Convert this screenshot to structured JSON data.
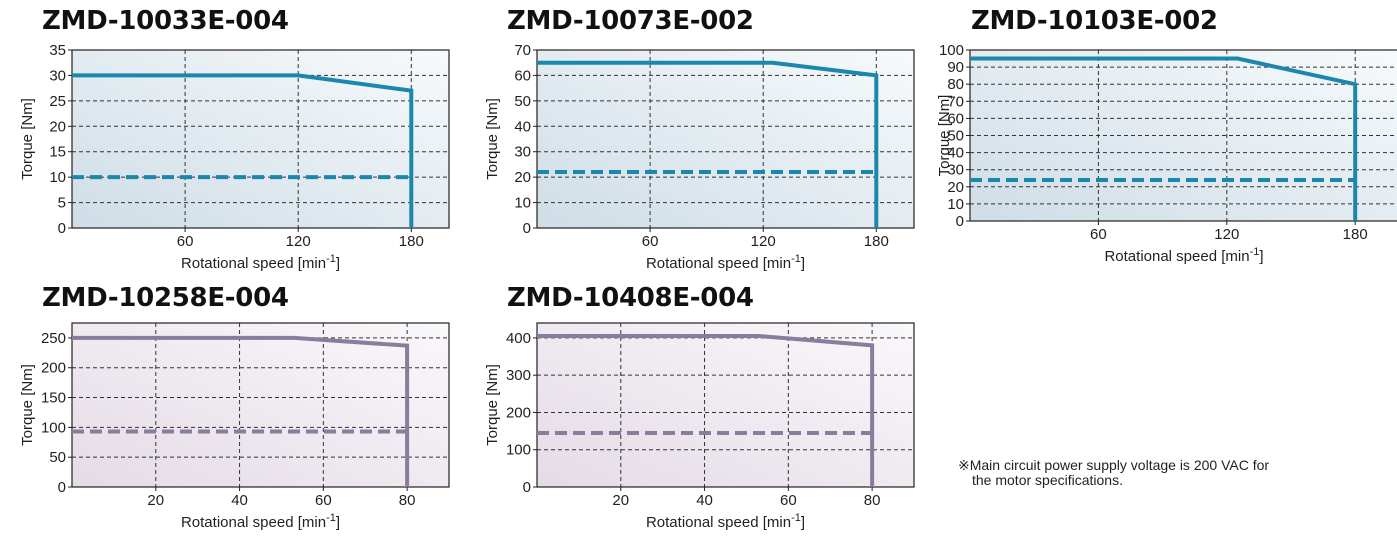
{
  "chart_data": [
    {
      "type": "line",
      "title": "ZMD-10033E-004",
      "xlabel": "Rotational speed [min",
      "xlabel_sup": "-1",
      "xlabel_suffix": "]",
      "ylabel": "Torque [Nm]",
      "xlim": [
        0,
        200
      ],
      "ylim": [
        0,
        35
      ],
      "xticks": [
        60,
        120,
        180
      ],
      "yticks": [
        0,
        5,
        10,
        15,
        20,
        25,
        30,
        35
      ],
      "grid": true,
      "color": "#1b87ad",
      "gradient": [
        "#f7fafc",
        "#cfdde6"
      ],
      "series": [
        {
          "style": "solid",
          "x": [
            0,
            120,
            180,
            180
          ],
          "y": [
            30,
            30,
            27,
            0
          ]
        },
        {
          "style": "dashed",
          "x": [
            0,
            180
          ],
          "y": [
            10,
            10
          ]
        }
      ]
    },
    {
      "type": "line",
      "title": "ZMD-10073E-002",
      "xlabel": "Rotational speed [min",
      "xlabel_sup": "-1",
      "xlabel_suffix": "]",
      "ylabel": "Torque [Nm]",
      "xlim": [
        0,
        200
      ],
      "ylim": [
        0,
        70
      ],
      "xticks": [
        60,
        120,
        180
      ],
      "yticks": [
        0,
        10,
        20,
        30,
        40,
        50,
        60,
        70
      ],
      "grid": true,
      "color": "#1b87ad",
      "gradient": [
        "#f7fafc",
        "#cfdde6"
      ],
      "series": [
        {
          "style": "solid",
          "x": [
            0,
            125,
            180,
            180
          ],
          "y": [
            65,
            65,
            60,
            0
          ]
        },
        {
          "style": "dashed",
          "x": [
            0,
            180
          ],
          "y": [
            22,
            22
          ]
        }
      ]
    },
    {
      "type": "line",
      "title": "ZMD-10103E-002",
      "xlabel": "Rotational speed [min",
      "xlabel_sup": "-1",
      "xlabel_suffix": "]",
      "ylabel": "Torque [Nm]",
      "xlim": [
        0,
        200
      ],
      "ylim": [
        0,
        100
      ],
      "xticks": [
        60,
        120,
        180
      ],
      "yticks": [
        0,
        10,
        20,
        30,
        40,
        50,
        60,
        70,
        80,
        90,
        100
      ],
      "grid": true,
      "color": "#1b87ad",
      "gradient": [
        "#f7fafc",
        "#cfdde6"
      ],
      "series": [
        {
          "style": "solid",
          "x": [
            0,
            125,
            180,
            180
          ],
          "y": [
            95,
            95,
            80,
            0
          ]
        },
        {
          "style": "dashed",
          "x": [
            0,
            180
          ],
          "y": [
            24,
            24
          ]
        }
      ]
    },
    {
      "type": "line",
      "title": "ZMD-10258E-004",
      "xlabel": "Rotational speed [min",
      "xlabel_sup": "-1",
      "xlabel_suffix": "]",
      "ylabel": "Torque [Nm]",
      "xlim": [
        0,
        90
      ],
      "ylim": [
        0,
        275
      ],
      "xticks": [
        20,
        40,
        60,
        80
      ],
      "yticks": [
        0,
        50,
        100,
        150,
        200,
        250
      ],
      "grid": true,
      "color": "#8a7c9c",
      "gradient": [
        "#faf8fb",
        "#e4dbe6"
      ],
      "series": [
        {
          "style": "solid",
          "x": [
            0,
            53,
            80,
            80
          ],
          "y": [
            250,
            250,
            237,
            0
          ]
        },
        {
          "style": "dashed",
          "x": [
            0,
            80
          ],
          "y": [
            93,
            93
          ]
        }
      ]
    },
    {
      "type": "line",
      "title": "ZMD-10408E-004",
      "xlabel": "Rotational speed [min",
      "xlabel_sup": "-1",
      "xlabel_suffix": "]",
      "ylabel": "Torque [Nm]",
      "xlim": [
        0,
        90
      ],
      "ylim": [
        0,
        440
      ],
      "xticks": [
        20,
        40,
        60,
        80
      ],
      "yticks": [
        0,
        100,
        200,
        300,
        400
      ],
      "grid": true,
      "color": "#8a7c9c",
      "gradient": [
        "#faf8fb",
        "#e4dbe6"
      ],
      "series": [
        {
          "style": "solid",
          "x": [
            0,
            53,
            80,
            80
          ],
          "y": [
            405,
            405,
            380,
            0
          ]
        },
        {
          "style": "dashed",
          "x": [
            0,
            80
          ],
          "y": [
            145,
            145
          ]
        }
      ]
    }
  ],
  "footnote": {
    "line1": "※Main circuit power supply voltage is 200 VAC for",
    "line2": "the motor specifications."
  }
}
